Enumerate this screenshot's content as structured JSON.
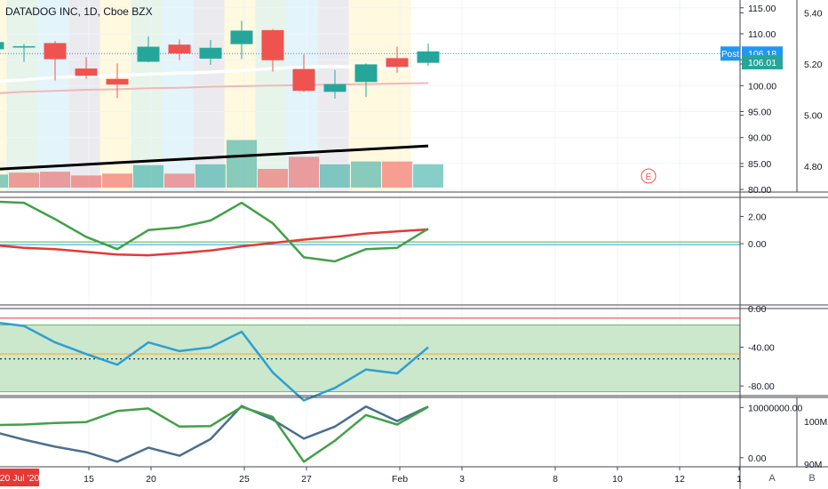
{
  "header": {
    "symbol_label": "DATADOG INC, 1D, Cboe BZX"
  },
  "colors": {
    "up": "#26a69a",
    "down": "#ef5350",
    "bg_yellow": "#fff9e0",
    "bg_green": "#e6f4ea",
    "bg_blue": "#e3f4fb",
    "bg_gray": "#ebebef",
    "ma_white": "#ffffff",
    "ma_pink": "#f0b8b8",
    "trend": "#000000",
    "osc_green": "#43a047",
    "osc_red": "#e53935",
    "line_blue": "#2e9fd1",
    "band_fill": "#c8e6c9",
    "dark_blue": "#4a6f8f",
    "price_tag": "#2196f3",
    "earnings": "#ef5350"
  },
  "chart_data": [
    {
      "type": "candlestick",
      "title": "DATADOG INC, 1D, Cboe BZX",
      "primary_axis": {
        "ticks": [
          "115.00",
          "110.00",
          "105.00",
          "100.00",
          "95.00",
          "90.00",
          "85.00",
          "80.00"
        ],
        "ylim": [
          79.5,
          116.5
        ]
      },
      "secondary_axis": {
        "ticks": [
          "5.40",
          "5.20",
          "5.00",
          "4.80"
        ],
        "ylim": [
          4.7,
          5.45
        ]
      },
      "x_labels": [
        "20 Jul '20",
        "15",
        "20",
        "25",
        "27",
        "Feb",
        "3",
        "8",
        "10",
        "12",
        "1"
      ],
      "background_colors": [
        "yellow",
        "green",
        "blue",
        "gray",
        "yellow",
        "green",
        "blue",
        "gray",
        "yellow",
        "green",
        "blue",
        "gray",
        "yellow",
        "yellow"
      ],
      "candles": [
        {
          "o": 107.0,
          "h": 108.6,
          "l": 105.8,
          "c": 108.4
        },
        {
          "o": 107.6,
          "h": 108.0,
          "l": 104.6,
          "c": 107.6
        },
        {
          "o": 108.2,
          "h": 108.6,
          "l": 101.0,
          "c": 105.1
        },
        {
          "o": 103.3,
          "h": 105.5,
          "l": 101.3,
          "c": 101.9
        },
        {
          "o": 101.3,
          "h": 104.3,
          "l": 97.6,
          "c": 100.2
        },
        {
          "o": 104.6,
          "h": 109.5,
          "l": 104.5,
          "c": 107.5
        },
        {
          "o": 107.9,
          "h": 108.9,
          "l": 104.9,
          "c": 106.2
        },
        {
          "o": 105.2,
          "h": 108.8,
          "l": 104.0,
          "c": 107.3
        },
        {
          "o": 108.0,
          "h": 112.5,
          "l": 105.1,
          "c": 110.6
        },
        {
          "o": 110.7,
          "h": 110.9,
          "l": 102.7,
          "c": 104.9
        },
        {
          "o": 103.2,
          "h": 106.0,
          "l": 98.8,
          "c": 99.0
        },
        {
          "o": 98.8,
          "h": 103.0,
          "l": 97.5,
          "c": 100.3
        },
        {
          "o": 100.7,
          "h": 104.3,
          "l": 97.8,
          "c": 104.1
        },
        {
          "o": 105.3,
          "h": 107.5,
          "l": 102.5,
          "c": 103.6
        },
        {
          "o": 104.4,
          "h": 108.1,
          "l": 103.8,
          "c": 106.6
        }
      ],
      "ma_white": [
        100.8,
        101.1,
        101.6,
        101.8,
        102.0,
        102.2,
        102.4,
        102.6,
        102.9,
        103.3,
        103.6,
        103.7,
        103.5,
        103.4,
        103.3
      ],
      "ma_pink": [
        98.5,
        98.8,
        99.0,
        99.2,
        99.3,
        99.5,
        99.6,
        99.8,
        99.9,
        100.0,
        100.1,
        100.2,
        100.3,
        100.4,
        100.5
      ],
      "trendline": {
        "start": 4.79,
        "end": 4.88
      },
      "volume": [
        {
          "v": 0.7,
          "up": true
        },
        {
          "v": 0.8,
          "up": false
        },
        {
          "v": 0.85,
          "up": false
        },
        {
          "v": 0.65,
          "up": false
        },
        {
          "v": 0.75,
          "up": false
        },
        {
          "v": 1.2,
          "up": true
        },
        {
          "v": 0.75,
          "up": false
        },
        {
          "v": 1.25,
          "up": true
        },
        {
          "v": 2.55,
          "up": true
        },
        {
          "v": 1.0,
          "up": false
        },
        {
          "v": 1.65,
          "up": false
        },
        {
          "v": 1.25,
          "up": true
        },
        {
          "v": 1.4,
          "up": true
        },
        {
          "v": 1.4,
          "up": false
        },
        {
          "v": 1.25,
          "up": true
        }
      ],
      "price_tags": [
        {
          "label": "Post",
          "value": "106.18",
          "y": 106.18
        },
        {
          "value": "106.01",
          "y": 104.5
        }
      ],
      "earnings_label": "E"
    },
    {
      "type": "line",
      "axis": {
        "ticks": [
          "2.00",
          "0.00"
        ],
        "ylim": [
          -4.5,
          3.4
        ]
      },
      "osc_green": [
        3.1,
        3.0,
        1.8,
        0.5,
        -0.4,
        1.0,
        1.2,
        1.7,
        3.0,
        1.5,
        -1.0,
        -1.3,
        -0.4,
        -0.3,
        1.1
      ],
      "osc_red": [
        -0.1,
        -0.3,
        -0.4,
        -0.6,
        -0.8,
        -0.85,
        -0.7,
        -0.5,
        -0.2,
        0.05,
        0.3,
        0.5,
        0.75,
        0.9,
        1.05
      ]
    },
    {
      "type": "line",
      "axis": {
        "ticks": [
          "0.00",
          "-40.00",
          "-80.00"
        ],
        "ylim": [
          -90,
          0
        ]
      },
      "band": [
        -17,
        -86
      ],
      "levels": [
        -10,
        -47,
        -52
      ],
      "series": [
        -14,
        -18,
        -35,
        -47,
        -58,
        -35,
        -44,
        -40,
        -24,
        -66,
        -95,
        -82,
        -63,
        -67,
        -40
      ]
    },
    {
      "type": "line",
      "axis": {
        "ticks": [
          "10000000.00",
          "0.00"
        ],
        "ylim": [
          -1800000,
          12000000
        ]
      },
      "secondary_axis": {
        "ticks": [
          "100M",
          "90M"
        ]
      },
      "series_green": [
        6500000,
        6600000,
        6900000,
        7100000,
        9300000,
        9800000,
        6200000,
        6300000,
        10100000,
        8100000,
        -800000,
        3400000,
        8500000,
        6600000,
        10100000
      ],
      "series_blue": [
        5200000,
        3600000,
        2200000,
        1100000,
        -800000,
        2000000,
        400000,
        3700000,
        10300000,
        7600000,
        3800000,
        6200000,
        10200000,
        7300000,
        10200000
      ]
    }
  ],
  "axis_buttons": {
    "auto": "A",
    "log": "B"
  }
}
